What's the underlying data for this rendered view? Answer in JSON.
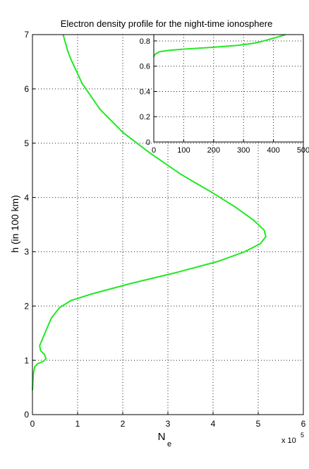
{
  "chart_data": [
    {
      "type": "line",
      "title": "Electron density profile for the night-time ionosphere",
      "xlabel_main": "N",
      "xlabel_sub": "e",
      "ylabel": "h (in 100 km)",
      "x_multiplier_base": "x 10",
      "x_multiplier_exp": "5",
      "xlim": [
        0,
        6
      ],
      "ylim": [
        0,
        7
      ],
      "xticks": [
        "0",
        "1",
        "2",
        "3",
        "4",
        "5",
        "6"
      ],
      "yticks": [
        "0",
        "1",
        "2",
        "3",
        "4",
        "5",
        "6",
        "7"
      ],
      "grid": true,
      "line_color": "#22e822",
      "series": [
        {
          "points": [
            [
              0.0,
              0.45
            ],
            [
              0.02,
              0.75
            ],
            [
              0.05,
              0.88
            ],
            [
              0.12,
              0.94
            ],
            [
              0.24,
              0.98
            ],
            [
              0.3,
              1.03
            ],
            [
              0.27,
              1.1
            ],
            [
              0.18,
              1.18
            ],
            [
              0.16,
              1.27
            ],
            [
              0.2,
              1.35
            ],
            [
              0.3,
              1.55
            ],
            [
              0.42,
              1.78
            ],
            [
              0.6,
              1.97
            ],
            [
              0.85,
              2.1
            ],
            [
              1.3,
              2.22
            ],
            [
              2.2,
              2.42
            ],
            [
              3.2,
              2.62
            ],
            [
              4.1,
              2.82
            ],
            [
              4.7,
              3.0
            ],
            [
              5.05,
              3.15
            ],
            [
              5.17,
              3.28
            ],
            [
              5.13,
              3.4
            ],
            [
              4.9,
              3.58
            ],
            [
              4.5,
              3.82
            ],
            [
              4.0,
              4.08
            ],
            [
              3.3,
              4.42
            ],
            [
              2.6,
              4.82
            ],
            [
              2.0,
              5.2
            ],
            [
              1.5,
              5.62
            ],
            [
              1.1,
              6.1
            ],
            [
              0.85,
              6.55
            ],
            [
              0.78,
              6.7
            ],
            [
              0.68,
              7.0
            ]
          ]
        }
      ]
    },
    {
      "type": "line",
      "title": "",
      "xlim": [
        0,
        500
      ],
      "ylim": [
        0,
        0.85
      ],
      "xticks": [
        "0",
        "100",
        "200",
        "300",
        "400",
        "500"
      ],
      "yticks": [
        "0",
        "0.2",
        "0.4",
        "0.6",
        "0.8"
      ],
      "grid": true,
      "line_color": "#22e822",
      "series": [
        {
          "points": [
            [
              0,
              0.675
            ],
            [
              3,
              0.69
            ],
            [
              8,
              0.7
            ],
            [
              20,
              0.715
            ],
            [
              50,
              0.725
            ],
            [
              100,
              0.735
            ],
            [
              200,
              0.75
            ],
            [
              280,
              0.765
            ],
            [
              330,
              0.78
            ],
            [
              360,
              0.795
            ],
            [
              390,
              0.815
            ],
            [
              420,
              0.835
            ],
            [
              440,
              0.85
            ]
          ]
        }
      ]
    }
  ]
}
